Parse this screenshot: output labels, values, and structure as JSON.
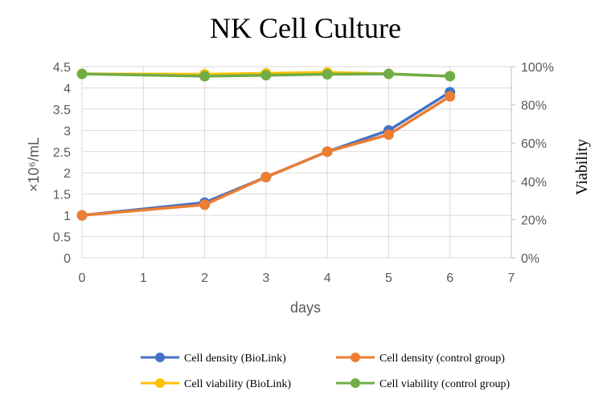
{
  "chart_data": {
    "type": "line",
    "title": "NK Cell Culture",
    "xlabel": "days",
    "ylabel": "×10⁶/mL",
    "y2label": "Viability",
    "x": [
      0,
      2,
      3,
      4,
      5,
      6
    ],
    "xlim": [
      0,
      7
    ],
    "xticks": [
      "0",
      "1",
      "2",
      "3",
      "4",
      "5",
      "6",
      "7"
    ],
    "ylim": [
      0,
      4.5
    ],
    "yticks": [
      "0",
      "0.5",
      "1",
      "1.5",
      "2",
      "2.5",
      "3",
      "3.5",
      "4",
      "4.5"
    ],
    "y2lim": [
      0,
      100
    ],
    "y2ticks": [
      "0%",
      "20%",
      "40%",
      "60%",
      "80%",
      "100%"
    ],
    "grid": true,
    "legend_position": "bottom",
    "series": [
      {
        "name": "Cell density (BioLink)",
        "axis": "left",
        "color": "#4472C4",
        "values": [
          1.0,
          1.3,
          1.9,
          2.5,
          3.0,
          3.9
        ]
      },
      {
        "name": "Cell density (control group)",
        "axis": "left",
        "color": "#ED7D31",
        "values": [
          1.0,
          1.25,
          1.9,
          2.5,
          2.9,
          3.8
        ]
      },
      {
        "name": "Cell viability (BioLink)",
        "axis": "right",
        "color": "#FFC000",
        "values": [
          96.2,
          96.0,
          96.5,
          97.0,
          96.2,
          95.0
        ]
      },
      {
        "name": "Cell viability (control group)",
        "axis": "right",
        "color": "#70AD47",
        "values": [
          96.2,
          95.0,
          95.5,
          96.0,
          96.2,
          95.0
        ]
      }
    ]
  }
}
